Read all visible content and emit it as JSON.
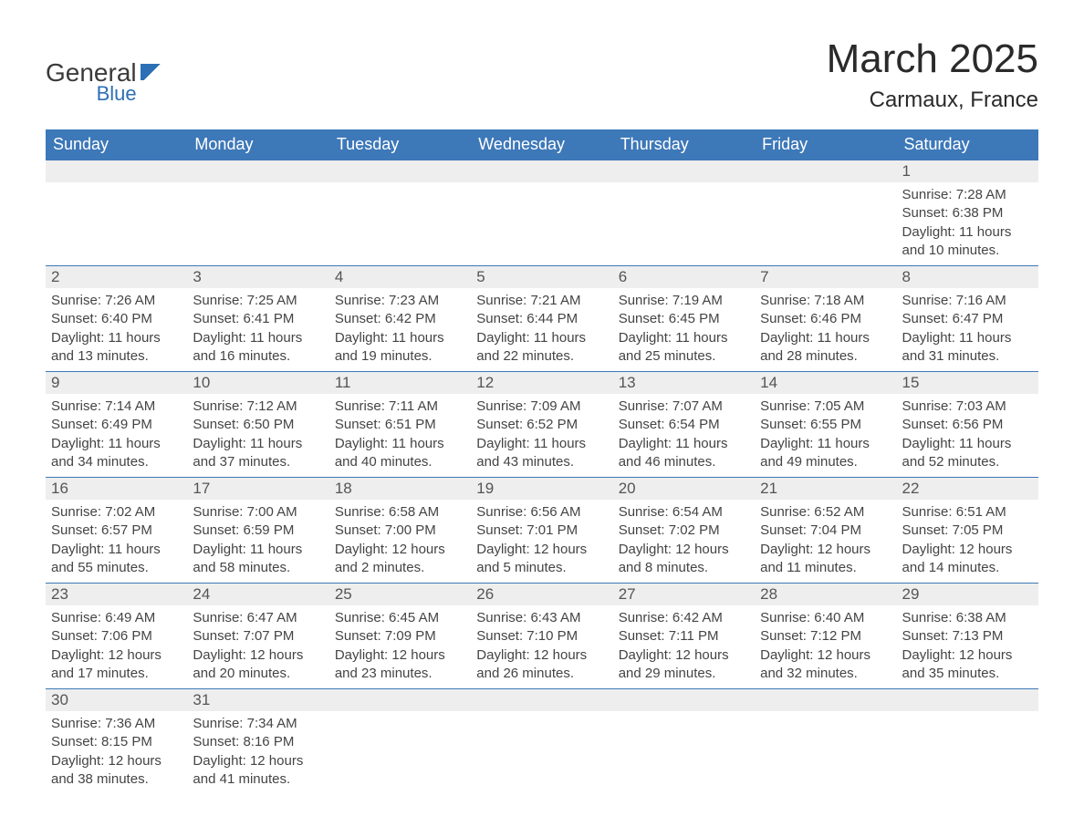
{
  "branding": {
    "general": "General",
    "blue": "Blue"
  },
  "header": {
    "month_title": "March 2025",
    "location": "Carmaux, France"
  },
  "calendar": {
    "header_bg": "#3d78b8",
    "header_fg": "#ffffff",
    "daynum_bg": "#eeeeee",
    "row_border": "#3d78b8",
    "day_names": [
      "Sunday",
      "Monday",
      "Tuesday",
      "Wednesday",
      "Thursday",
      "Friday",
      "Saturday"
    ],
    "weeks": [
      [
        null,
        null,
        null,
        null,
        null,
        null,
        {
          "n": "1",
          "sr": "Sunrise: 7:28 AM",
          "ss": "Sunset: 6:38 PM",
          "d1": "Daylight: 11 hours",
          "d2": "and 10 minutes."
        }
      ],
      [
        {
          "n": "2",
          "sr": "Sunrise: 7:26 AM",
          "ss": "Sunset: 6:40 PM",
          "d1": "Daylight: 11 hours",
          "d2": "and 13 minutes."
        },
        {
          "n": "3",
          "sr": "Sunrise: 7:25 AM",
          "ss": "Sunset: 6:41 PM",
          "d1": "Daylight: 11 hours",
          "d2": "and 16 minutes."
        },
        {
          "n": "4",
          "sr": "Sunrise: 7:23 AM",
          "ss": "Sunset: 6:42 PM",
          "d1": "Daylight: 11 hours",
          "d2": "and 19 minutes."
        },
        {
          "n": "5",
          "sr": "Sunrise: 7:21 AM",
          "ss": "Sunset: 6:44 PM",
          "d1": "Daylight: 11 hours",
          "d2": "and 22 minutes."
        },
        {
          "n": "6",
          "sr": "Sunrise: 7:19 AM",
          "ss": "Sunset: 6:45 PM",
          "d1": "Daylight: 11 hours",
          "d2": "and 25 minutes."
        },
        {
          "n": "7",
          "sr": "Sunrise: 7:18 AM",
          "ss": "Sunset: 6:46 PM",
          "d1": "Daylight: 11 hours",
          "d2": "and 28 minutes."
        },
        {
          "n": "8",
          "sr": "Sunrise: 7:16 AM",
          "ss": "Sunset: 6:47 PM",
          "d1": "Daylight: 11 hours",
          "d2": "and 31 minutes."
        }
      ],
      [
        {
          "n": "9",
          "sr": "Sunrise: 7:14 AM",
          "ss": "Sunset: 6:49 PM",
          "d1": "Daylight: 11 hours",
          "d2": "and 34 minutes."
        },
        {
          "n": "10",
          "sr": "Sunrise: 7:12 AM",
          "ss": "Sunset: 6:50 PM",
          "d1": "Daylight: 11 hours",
          "d2": "and 37 minutes."
        },
        {
          "n": "11",
          "sr": "Sunrise: 7:11 AM",
          "ss": "Sunset: 6:51 PM",
          "d1": "Daylight: 11 hours",
          "d2": "and 40 minutes."
        },
        {
          "n": "12",
          "sr": "Sunrise: 7:09 AM",
          "ss": "Sunset: 6:52 PM",
          "d1": "Daylight: 11 hours",
          "d2": "and 43 minutes."
        },
        {
          "n": "13",
          "sr": "Sunrise: 7:07 AM",
          "ss": "Sunset: 6:54 PM",
          "d1": "Daylight: 11 hours",
          "d2": "and 46 minutes."
        },
        {
          "n": "14",
          "sr": "Sunrise: 7:05 AM",
          "ss": "Sunset: 6:55 PM",
          "d1": "Daylight: 11 hours",
          "d2": "and 49 minutes."
        },
        {
          "n": "15",
          "sr": "Sunrise: 7:03 AM",
          "ss": "Sunset: 6:56 PM",
          "d1": "Daylight: 11 hours",
          "d2": "and 52 minutes."
        }
      ],
      [
        {
          "n": "16",
          "sr": "Sunrise: 7:02 AM",
          "ss": "Sunset: 6:57 PM",
          "d1": "Daylight: 11 hours",
          "d2": "and 55 minutes."
        },
        {
          "n": "17",
          "sr": "Sunrise: 7:00 AM",
          "ss": "Sunset: 6:59 PM",
          "d1": "Daylight: 11 hours",
          "d2": "and 58 minutes."
        },
        {
          "n": "18",
          "sr": "Sunrise: 6:58 AM",
          "ss": "Sunset: 7:00 PM",
          "d1": "Daylight: 12 hours",
          "d2": "and 2 minutes."
        },
        {
          "n": "19",
          "sr": "Sunrise: 6:56 AM",
          "ss": "Sunset: 7:01 PM",
          "d1": "Daylight: 12 hours",
          "d2": "and 5 minutes."
        },
        {
          "n": "20",
          "sr": "Sunrise: 6:54 AM",
          "ss": "Sunset: 7:02 PM",
          "d1": "Daylight: 12 hours",
          "d2": "and 8 minutes."
        },
        {
          "n": "21",
          "sr": "Sunrise: 6:52 AM",
          "ss": "Sunset: 7:04 PM",
          "d1": "Daylight: 12 hours",
          "d2": "and 11 minutes."
        },
        {
          "n": "22",
          "sr": "Sunrise: 6:51 AM",
          "ss": "Sunset: 7:05 PM",
          "d1": "Daylight: 12 hours",
          "d2": "and 14 minutes."
        }
      ],
      [
        {
          "n": "23",
          "sr": "Sunrise: 6:49 AM",
          "ss": "Sunset: 7:06 PM",
          "d1": "Daylight: 12 hours",
          "d2": "and 17 minutes."
        },
        {
          "n": "24",
          "sr": "Sunrise: 6:47 AM",
          "ss": "Sunset: 7:07 PM",
          "d1": "Daylight: 12 hours",
          "d2": "and 20 minutes."
        },
        {
          "n": "25",
          "sr": "Sunrise: 6:45 AM",
          "ss": "Sunset: 7:09 PM",
          "d1": "Daylight: 12 hours",
          "d2": "and 23 minutes."
        },
        {
          "n": "26",
          "sr": "Sunrise: 6:43 AM",
          "ss": "Sunset: 7:10 PM",
          "d1": "Daylight: 12 hours",
          "d2": "and 26 minutes."
        },
        {
          "n": "27",
          "sr": "Sunrise: 6:42 AM",
          "ss": "Sunset: 7:11 PM",
          "d1": "Daylight: 12 hours",
          "d2": "and 29 minutes."
        },
        {
          "n": "28",
          "sr": "Sunrise: 6:40 AM",
          "ss": "Sunset: 7:12 PM",
          "d1": "Daylight: 12 hours",
          "d2": "and 32 minutes."
        },
        {
          "n": "29",
          "sr": "Sunrise: 6:38 AM",
          "ss": "Sunset: 7:13 PM",
          "d1": "Daylight: 12 hours",
          "d2": "and 35 minutes."
        }
      ],
      [
        {
          "n": "30",
          "sr": "Sunrise: 7:36 AM",
          "ss": "Sunset: 8:15 PM",
          "d1": "Daylight: 12 hours",
          "d2": "and 38 minutes."
        },
        {
          "n": "31",
          "sr": "Sunrise: 7:34 AM",
          "ss": "Sunset: 8:16 PM",
          "d1": "Daylight: 12 hours",
          "d2": "and 41 minutes."
        },
        null,
        null,
        null,
        null,
        null
      ]
    ]
  }
}
